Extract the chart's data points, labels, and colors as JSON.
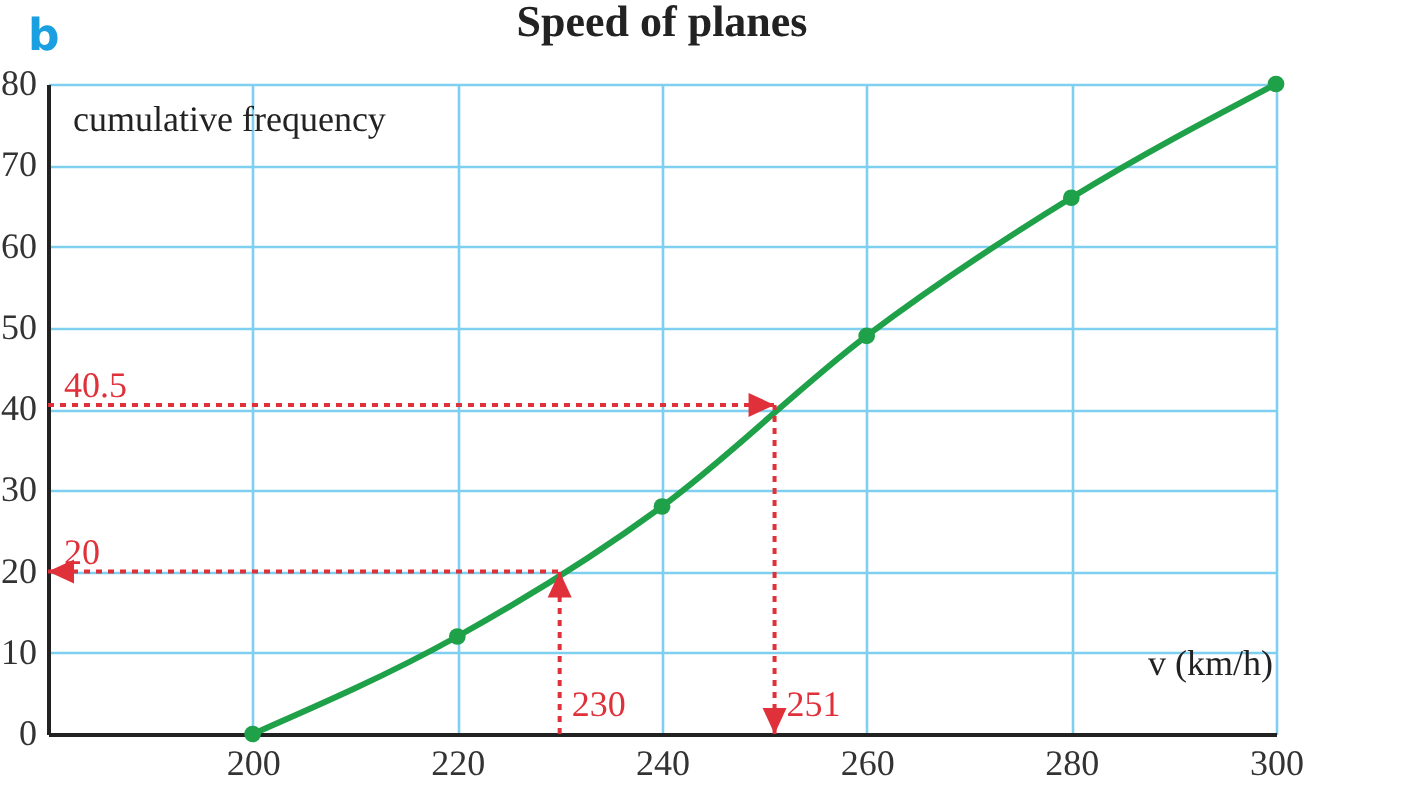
{
  "chart_data": {
    "type": "line",
    "title": "Speed of planes",
    "xlabel": "v (km/h)",
    "ylabel": "cumulative frequency",
    "annotations": [
      "b"
    ],
    "x": [
      200,
      220,
      240,
      260,
      280,
      300
    ],
    "series": [
      {
        "color": "#1fa149",
        "values": [
          0,
          12,
          28,
          49,
          66,
          80
        ]
      }
    ],
    "xlim": [
      180,
      300
    ],
    "xticks": [
      200,
      220,
      240,
      260,
      280,
      300
    ],
    "ylim": [
      0,
      80
    ],
    "yticks": [
      0,
      10,
      20,
      30,
      40,
      50,
      60,
      70,
      80
    ],
    "grid": true,
    "marker": "circle",
    "line_style": "solid",
    "ref_lines": [
      {
        "axis": "y",
        "value": 40.5,
        "label": "40.5",
        "color": "#e0303a",
        "line_style": "dotted"
      },
      {
        "axis": "x",
        "value": 251,
        "label": "251",
        "color": "#e0303a",
        "line_style": "dotted"
      },
      {
        "axis": "x",
        "value": 230,
        "label": "230",
        "color": "#e0303a",
        "line_style": "dotted"
      },
      {
        "axis": "y",
        "value": 20,
        "label": "20",
        "color": "#e0303a",
        "line_style": "dotted"
      }
    ]
  }
}
